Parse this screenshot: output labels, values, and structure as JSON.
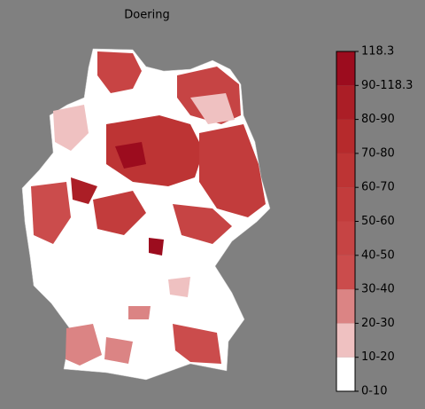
{
  "map": {
    "title": "Doering"
  },
  "colorbar": {
    "ticks": [
      "0-10",
      "10-20",
      "20-30",
      "30-40",
      "40-50",
      "50-60",
      "60-70",
      "70-80",
      "80-90",
      "90-118.3",
      "118.3"
    ],
    "colors": [
      "#ffffff",
      "#efc1c1",
      "#db8484",
      "#cb4c4c",
      "#c64444",
      "#c23c3c",
      "#bd3434",
      "#b62a2c",
      "#ab1e26",
      "#9c0c1e"
    ]
  }
}
